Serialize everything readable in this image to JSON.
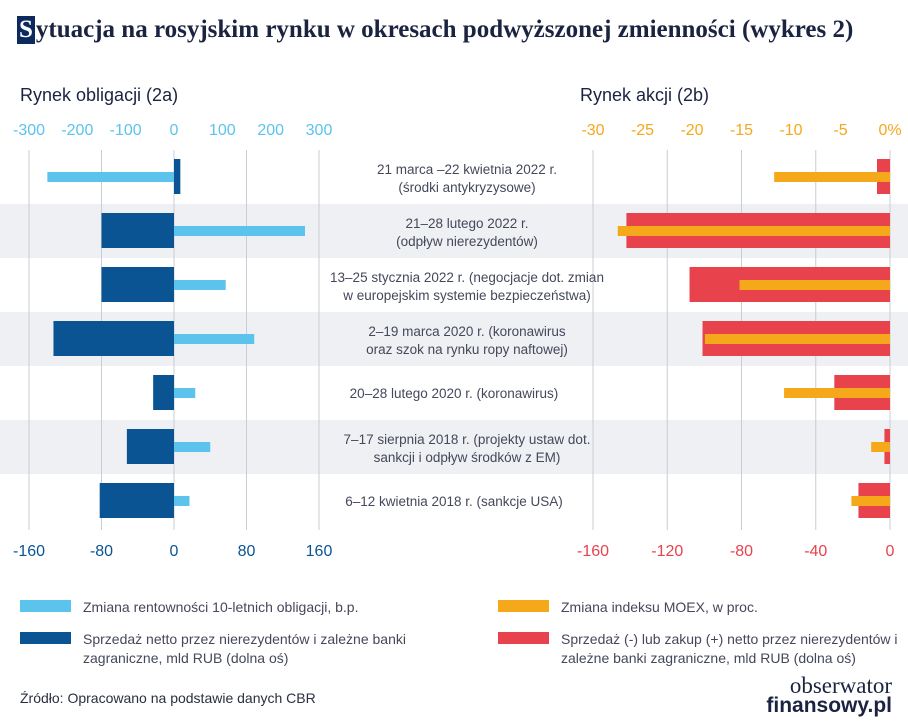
{
  "title": "Sytuacja na rosyjskim rynku w okresach podwyższonej zmienności (wykres 2)",
  "title_first_letter": "S",
  "title_rest": "ytuacja na rosyjskim rynku w okresach podwyższonej zmienności (wykres 2)",
  "source": "Źródło: Opracowano na podstawie danych CBR",
  "logo": {
    "line1": "obserwator",
    "line2": "finansowy.pl"
  },
  "colors": {
    "light_blue": "#5bc3ec",
    "dark_blue": "#0a5494",
    "orange": "#f5a81a",
    "red": "#e8424d",
    "band": "#eef0f3"
  },
  "periods": [
    {
      "line1": "21 marca –22 kwietnia 2022 r.",
      "line2": "(środki antykryzysowe)"
    },
    {
      "line1": "21–28 lutego 2022 r.",
      "line2": "(odpływ nierezydentów)"
    },
    {
      "line1": "13–25 stycznia 2022 r. (negocjacje dot. zmian",
      "line2": "w europejskim systemie bezpieczeństwa)"
    },
    {
      "line1": "2–19 marca 2020 r. (koronawirus",
      "line2": "oraz szok na rynku ropy naftowej)"
    },
    {
      "line1": "20–28 lutego 2020 r. (koronawirus)",
      "line2": ""
    },
    {
      "line1": "7–17 sierpnia 2018 r. (projekty ustaw dot.",
      "line2": "sankcji i odpływ środków z EM)"
    },
    {
      "line1": "6–12 kwietnia 2018 r. (sankcje USA)",
      "line2": ""
    }
  ],
  "legend": [
    {
      "label": "Zmiana rentowności 10-letnich obligacji, b.p.",
      "color": "#5bc3ec"
    },
    {
      "label": "Sprzedaż netto przez nierezydentów i zależne banki zagraniczne, mld RUB (dolna oś)",
      "color": "#0a5494"
    },
    {
      "label": "Zmiana indeksu MOEX, w proc.",
      "color": "#f5a81a"
    },
    {
      "label": "Sprzedaż (-) lub zakup (+) netto przez nierezydentów i zależne banki zagraniczne, mld RUB (dolna oś)",
      "color": "#e8424d"
    }
  ],
  "chart_data": [
    {
      "type": "bar",
      "orientation": "horizontal",
      "title": "Rynek obligacji (2a)",
      "top_axis": {
        "ticks": [
          -300,
          -200,
          -100,
          0,
          100,
          200,
          300
        ],
        "tick_labels": [
          "-300",
          "-200",
          "-100",
          "0",
          "100",
          "200",
          "300"
        ],
        "range": [
          -350,
          300
        ]
      },
      "bottom_axis": {
        "ticks": [
          -160,
          -80,
          0,
          80,
          160
        ],
        "tick_labels": [
          "-160",
          "-80",
          "0",
          "80",
          "160"
        ],
        "range": [
          -170,
          160
        ]
      },
      "series": [
        {
          "name": "Zmiana rentowności 10-letnich obligacji, b.p.",
          "axis": "top",
          "values": [
            -262,
            271,
            107,
            166,
            44,
            75,
            32
          ]
        },
        {
          "name": "Sprzedaż netto przez nierezydentów i zależne banki zagraniczne, mld RUB (dolna oś)",
          "axis": "bottom",
          "values": [
            7,
            -80,
            -80,
            -133,
            -23,
            -52,
            -82
          ]
        }
      ]
    },
    {
      "type": "bar",
      "orientation": "horizontal",
      "title": "Rynek akcji (2b)",
      "top_axis": {
        "ticks": [
          -30,
          -25,
          -20,
          -15,
          -10,
          -5,
          0
        ],
        "tick_labels": [
          "-30",
          "-25",
          "-20",
          "-15",
          "-10",
          "-5",
          "0%"
        ],
        "range": [
          -30,
          0
        ]
      },
      "bottom_axis": {
        "ticks": [
          -160,
          -120,
          -80,
          -40,
          0
        ],
        "tick_labels": [
          "-160",
          "-120",
          "-80",
          "-40",
          "0"
        ],
        "range": [
          -160,
          0
        ]
      },
      "series": [
        {
          "name": "Zmiana indeksu MOEX, w proc.",
          "axis": "top",
          "values": [
            -11.7,
            -27.5,
            -15.2,
            -18.7,
            -10.7,
            -1.9,
            -3.9
          ]
        },
        {
          "name": "Sprzedaż (-) lub zakup (+) netto przez nierezydentów i zależne banki zagraniczne, mld RUB (dolna oś)",
          "axis": "bottom",
          "values": [
            -7,
            -142,
            -108,
            -101,
            -30,
            -3,
            -17
          ]
        }
      ]
    }
  ]
}
